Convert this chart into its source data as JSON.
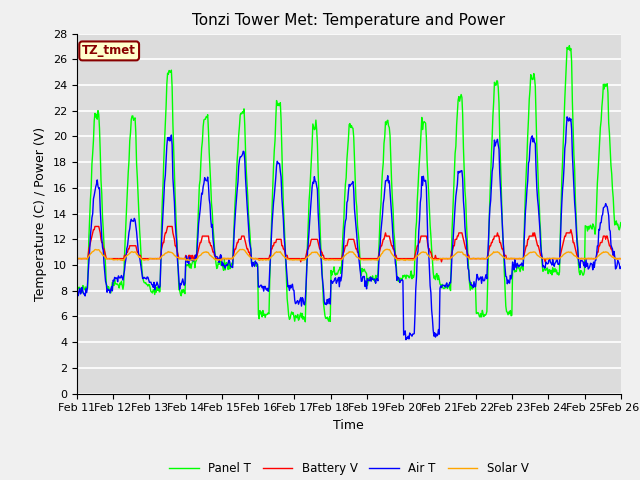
{
  "title": "Tonzi Tower Met: Temperature and Power",
  "xlabel": "Time",
  "ylabel": "Temperature (C) / Power (V)",
  "annotation": "TZ_tmet",
  "ylim": [
    0,
    28
  ],
  "yticks": [
    0,
    2,
    4,
    6,
    8,
    10,
    12,
    14,
    16,
    18,
    20,
    22,
    24,
    26,
    28
  ],
  "xtick_labels": [
    "Feb 11",
    "Feb 12",
    "Feb 13",
    "Feb 14",
    "Feb 15",
    "Feb 16",
    "Feb 17",
    "Feb 18",
    "Feb 19",
    "Feb 20",
    "Feb 21",
    "Feb 22",
    "Feb 23",
    "Feb 24",
    "Feb 25",
    "Feb 26"
  ],
  "legend": [
    "Panel T",
    "Battery V",
    "Air T",
    "Solar V"
  ],
  "colors": [
    "#00ff00",
    "#ff0000",
    "#0000ff",
    "#ffa500"
  ],
  "background_color": "#dcdcdc",
  "fig_color": "#f0f0f0",
  "annotation_bg": "#ffffcc",
  "annotation_fg": "#880000",
  "title_fontsize": 11,
  "axis_fontsize": 9,
  "tick_fontsize": 8
}
